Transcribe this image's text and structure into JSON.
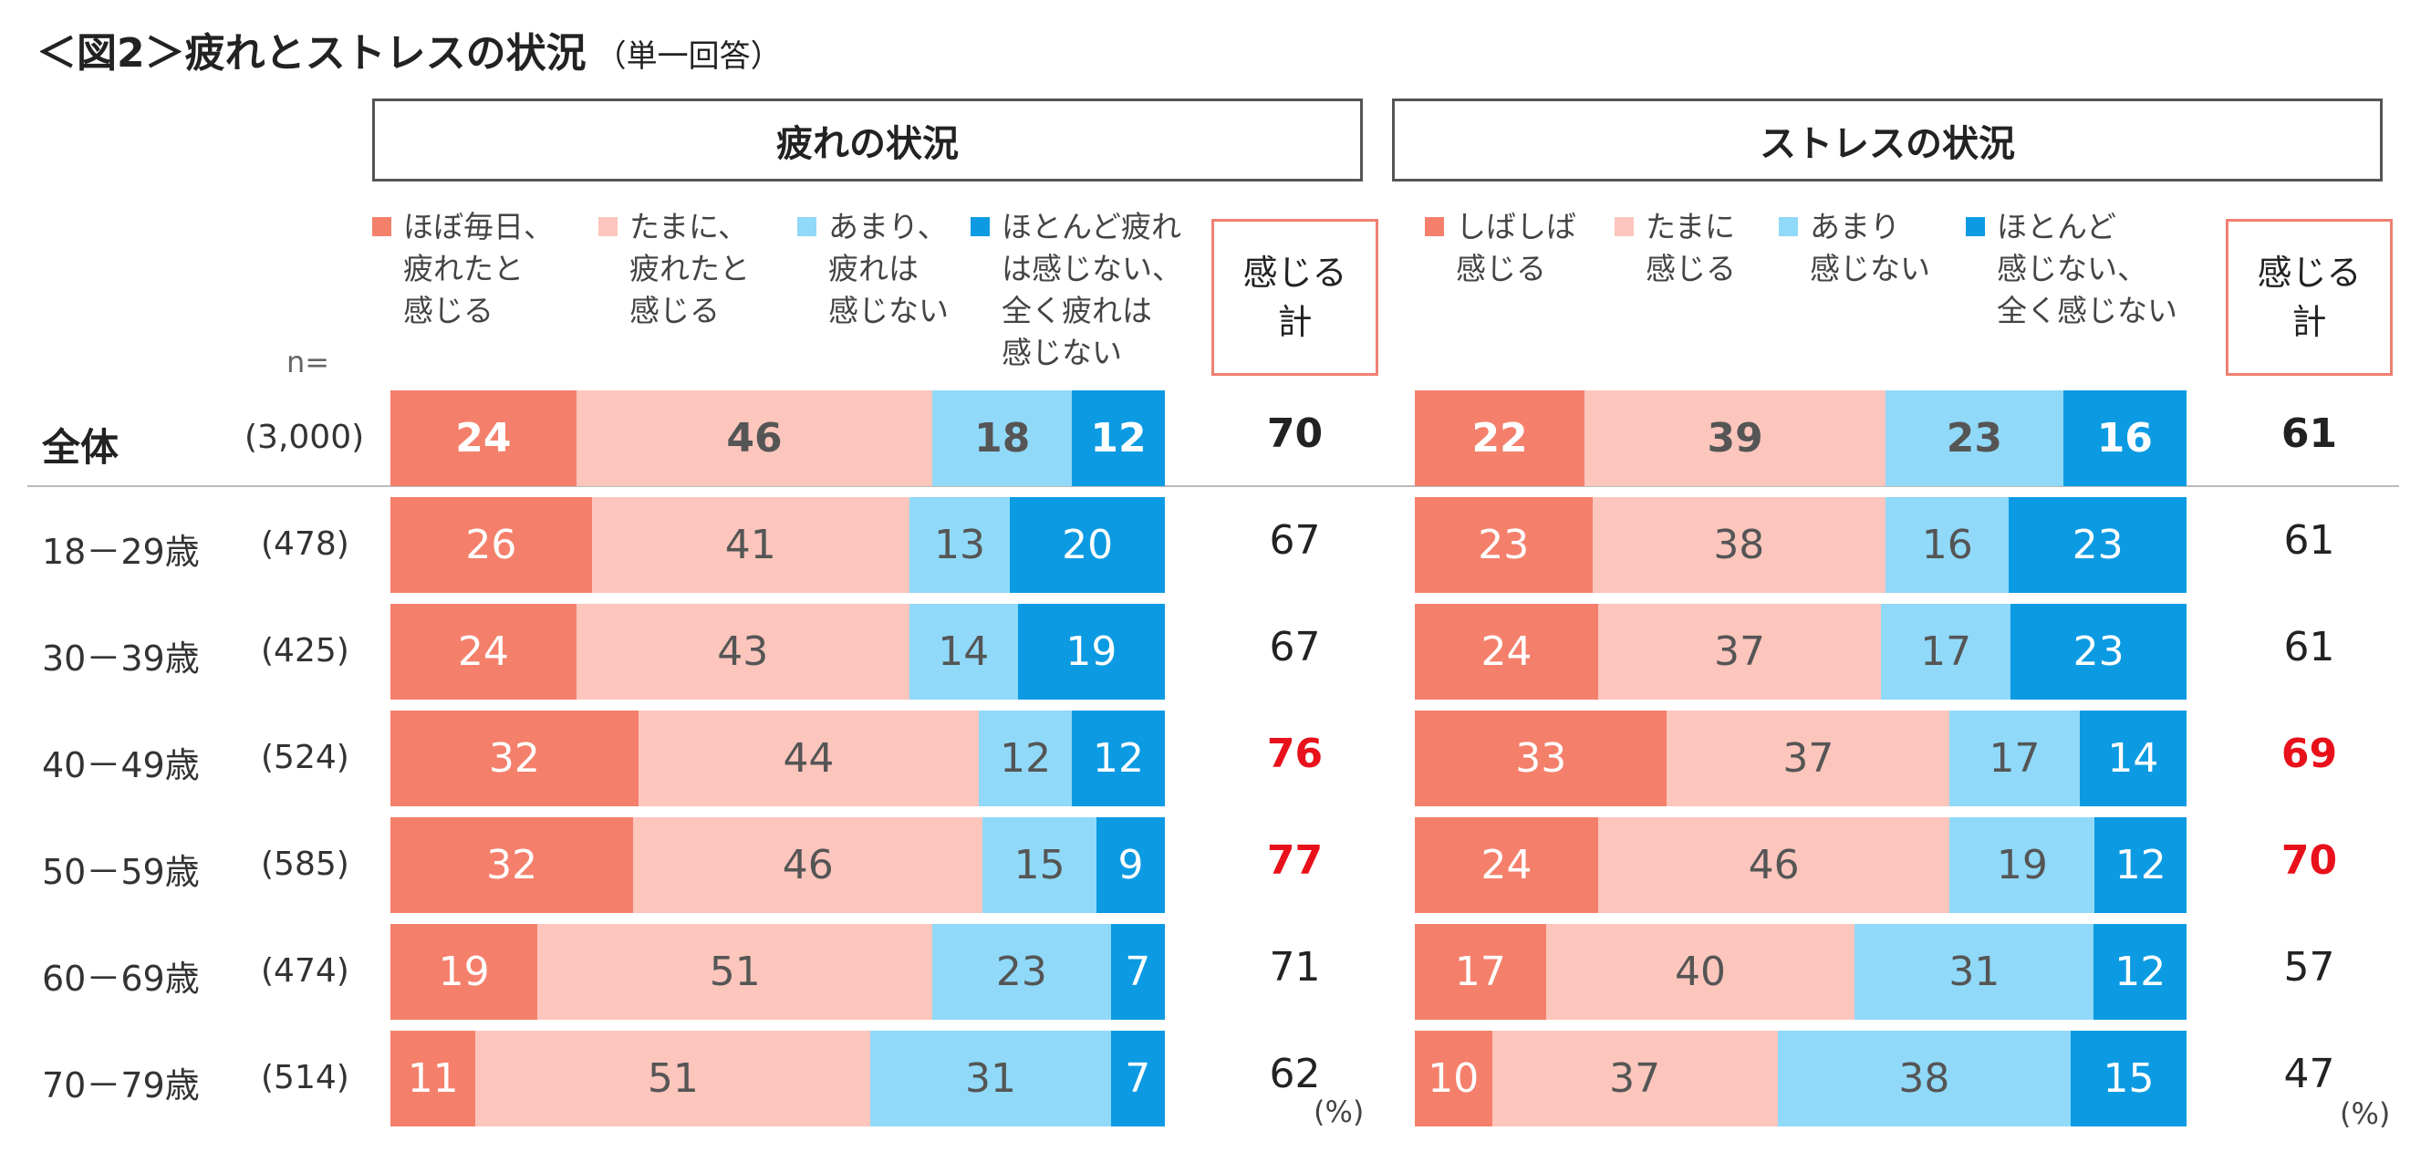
{
  "title": "＜図2＞疲れとストレスの状況",
  "subtitle": "（単一回答）",
  "n_label": "n=",
  "unit": "(%)",
  "colors": {
    "c1": "#f4806c",
    "c2": "#fcc6bd",
    "c3": "#90d9f8",
    "c4": "#0c9be2",
    "highlight": "#e8101a",
    "total_box": "#f08070"
  },
  "rows": [
    {
      "label": "全体",
      "n": "(3,000)"
    },
    {
      "label": "18－29歳",
      "n": "(478)"
    },
    {
      "label": "30－39歳",
      "n": "(425)"
    },
    {
      "label": "40－49歳",
      "n": "(524)"
    },
    {
      "label": "50－59歳",
      "n": "(585)"
    },
    {
      "label": "60－69歳",
      "n": "(474)"
    },
    {
      "label": "70－79歳",
      "n": "(514)"
    }
  ],
  "chart_data": [
    {
      "type": "bar",
      "orientation": "horizontal",
      "stacked": "100%",
      "title": "疲れの状況",
      "total_label": "感じる\n計",
      "categories": [
        "全体",
        "18－29歳",
        "30－39歳",
        "40－49歳",
        "50－59歳",
        "60－69歳",
        "70－79歳"
      ],
      "series": [
        {
          "name": "ほぼ毎日、\n疲れたと\n感じる",
          "values": [
            24,
            26,
            24,
            32,
            32,
            19,
            11
          ]
        },
        {
          "name": "たまに、\n疲れたと\n感じる",
          "values": [
            46,
            41,
            43,
            44,
            46,
            51,
            51
          ]
        },
        {
          "name": "あまり、\n疲れは\n感じない",
          "values": [
            18,
            13,
            14,
            12,
            15,
            23,
            31
          ]
        },
        {
          "name": "ほとんど疲れ\nは感じない、\n全く疲れは\n感じない",
          "values": [
            12,
            20,
            19,
            12,
            9,
            7,
            7
          ]
        }
      ],
      "totals": [
        70,
        67,
        67,
        76,
        77,
        71,
        62
      ],
      "highlight_totals": [
        76,
        77
      ]
    },
    {
      "type": "bar",
      "orientation": "horizontal",
      "stacked": "100%",
      "title": "ストレスの状況",
      "total_label": "感じる\n計",
      "categories": [
        "全体",
        "18－29歳",
        "30－39歳",
        "40－49歳",
        "50－59歳",
        "60－69歳",
        "70－79歳"
      ],
      "series": [
        {
          "name": "しばしば\n感じる",
          "values": [
            22,
            23,
            24,
            33,
            24,
            17,
            10
          ]
        },
        {
          "name": "たまに\n感じる",
          "values": [
            39,
            38,
            37,
            37,
            46,
            40,
            37
          ]
        },
        {
          "name": "あまり\n感じない",
          "values": [
            23,
            16,
            17,
            17,
            19,
            31,
            38
          ]
        },
        {
          "name": "ほとんど\n感じない、\n全く感じない",
          "values": [
            16,
            23,
            23,
            14,
            12,
            12,
            15
          ]
        }
      ],
      "totals": [
        61,
        61,
        61,
        69,
        70,
        57,
        47
      ],
      "highlight_totals": [
        69,
        70
      ]
    }
  ]
}
